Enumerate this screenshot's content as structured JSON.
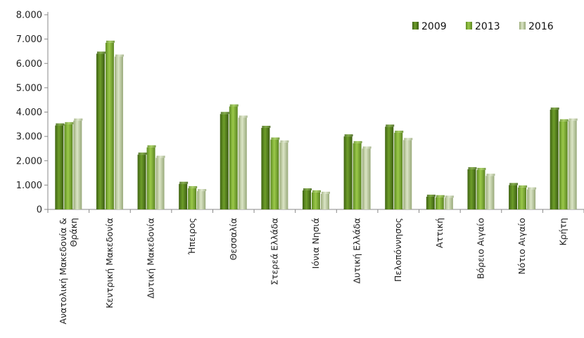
{
  "chart_data": {
    "type": "bar",
    "categories": [
      [
        "Ανατολική Μακεδονία &",
        "Θράκη"
      ],
      [
        "Κεντρική Μακεδονία"
      ],
      [
        "Δυτική Μακεδονία"
      ],
      [
        "Ήπειρος"
      ],
      [
        "Θεσσαλία"
      ],
      [
        "Στερεά Ελλάδα"
      ],
      [
        "Ιόνια Νησιά"
      ],
      [
        "Δυτική Ελλάδα"
      ],
      [
        "Πελοπόννησος"
      ],
      [
        "Αττική"
      ],
      [
        "Βόρειο Αιγαίο"
      ],
      [
        "Νότιο Αιγαίο"
      ],
      [
        "Κρήτη"
      ]
    ],
    "series": [
      {
        "name": "2009",
        "color": "#4f7a1a",
        "values": [
          3450,
          6400,
          2250,
          1050,
          3920,
          3350,
          780,
          3000,
          3400,
          520,
          1650,
          1000,
          4100
        ]
      },
      {
        "name": "2013",
        "color": "#7aa830",
        "values": [
          3500,
          6850,
          2550,
          870,
          4230,
          2870,
          700,
          2720,
          3150,
          500,
          1620,
          900,
          3620
        ]
      },
      {
        "name": "2016",
        "color": "#b7c59a",
        "values": [
          3650,
          6280,
          2120,
          750,
          3770,
          2750,
          640,
          2500,
          2850,
          480,
          1380,
          820,
          3650
        ]
      }
    ],
    "y_ticks": [
      "0",
      "1.000",
      "2.000",
      "3.000",
      "4.000",
      "5.000",
      "6.000",
      "7.000",
      "8.000"
    ],
    "ylim": [
      0,
      8000
    ],
    "grid": false,
    "legend_position": "top-right"
  }
}
